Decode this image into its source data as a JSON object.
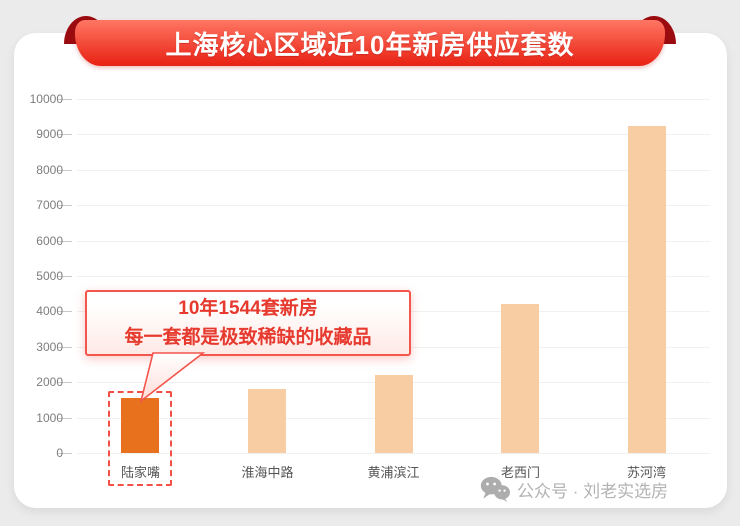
{
  "banner": {
    "title": "上海核心区域近10年新房供应套数",
    "ribbon_color_top": "#ff7663",
    "ribbon_color_bottom": "#e92517",
    "curl_color": "#9b0c10"
  },
  "chart_data": {
    "type": "bar",
    "title": "上海核心区域近10年新房供应套数",
    "categories": [
      "陆家嘴",
      "淮海中路",
      "黄浦滨江",
      "老西门",
      "苏河湾"
    ],
    "values": [
      1544,
      1800,
      2200,
      4200,
      9250
    ],
    "xlabel": "",
    "ylabel": "",
    "ylim": [
      0,
      10000
    ],
    "ytick_step": 1000,
    "grid": true,
    "legend": "none",
    "bar_color": "#f8cda3",
    "highlight_index": 0,
    "highlight_bar_color": "#e8711d"
  },
  "annotation": {
    "line1": "10年1544套新房",
    "line2": "每一套都是极致稀缺的收藏品",
    "text_color": "#e63a2f",
    "border_color": "#f2564c",
    "highlight_box_color": "#f24f46"
  },
  "watermark": {
    "icon": "wechat-icon",
    "text": "公众号 · 刘老实选房",
    "color": "#b3b3b3"
  }
}
